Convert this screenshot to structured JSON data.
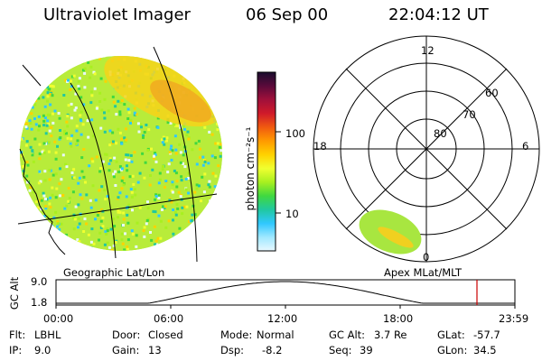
{
  "header": {
    "instrument": "Ultraviolet Imager",
    "date": "06 Sep 00",
    "time": "22:04:12 UT"
  },
  "left_panel": {
    "label": "Geographic Lat/Lon"
  },
  "right_panel": {
    "label": "Apex MLat/MLT",
    "mlt_labels": [
      "12",
      "18",
      "6",
      "0"
    ],
    "mlat_labels": [
      "60",
      "70",
      "80"
    ]
  },
  "colorbar": {
    "label": "photon cm⁻²s⁻¹",
    "tick_labels": [
      "100",
      "10"
    ],
    "colors": [
      "#1a0d2e",
      "#5a0a3a",
      "#a0103a",
      "#d01a2a",
      "#f05a10",
      "#ff9a00",
      "#ffd200",
      "#f0ff30",
      "#a8f020",
      "#40d840",
      "#20c8a0",
      "#30c8ff",
      "#a0e8ff",
      "#e8f8ff"
    ]
  },
  "altitude_plot": {
    "ylabel": "GC Alt",
    "y_ticks": [
      "9.0",
      "1.8"
    ],
    "x_ticks": [
      "00:00",
      "06:00",
      "12:00",
      "18:00",
      "23:59"
    ],
    "current_marker_color": "#cc0000"
  },
  "info": {
    "flt_label": "Flt:",
    "flt_value": "LBHL",
    "ip_label": "IP:",
    "ip_value": "9.0",
    "door_label": "Door:",
    "door_value": "Closed",
    "gain_label": "Gain:",
    "gain_value": "13",
    "mode_label": "Mode:",
    "mode_value": "Normal",
    "dsp_label": "Dsp:",
    "dsp_value": "-8.2",
    "gcalt_label": "GC Alt:",
    "gcalt_value": "3.7 Re",
    "seq_label": "Seq:",
    "seq_value": "39",
    "glat_label": "GLat:",
    "glat_value": "-57.7",
    "glon_label": "GLon:",
    "glon_value": "34.5"
  }
}
